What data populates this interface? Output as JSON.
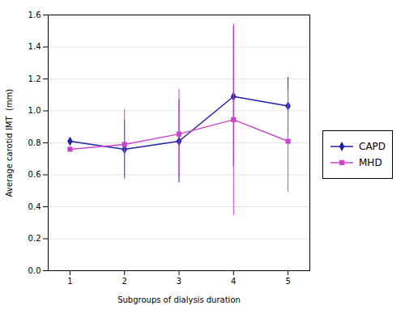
{
  "chart_data": {
    "type": "line",
    "x": [
      1,
      2,
      3,
      4,
      5
    ],
    "series": [
      {
        "name": "CAPD",
        "color": "#2222aa",
        "marker": "diamond",
        "values": [
          0.81,
          0.76,
          0.81,
          1.09,
          1.03
        ],
        "error_low": [
          0.0,
          0.18,
          0.26,
          0.44,
          0.18
        ],
        "error_high": [
          0.0,
          0.18,
          0.26,
          0.44,
          0.18
        ]
      },
      {
        "name": "MHD",
        "color": "#cc44cc",
        "marker": "square",
        "values": [
          0.76,
          0.79,
          0.855,
          0.945,
          0.81
        ],
        "error_low": [
          0.0,
          0.22,
          0.28,
          0.6,
          0.32
        ],
        "error_high": [
          0.0,
          0.22,
          0.28,
          0.6,
          0.32
        ]
      }
    ],
    "xlabel": "Subgroups of dialysis duration",
    "ylabel": "Average carotid IMT  (mm)",
    "xlim": [
      0.6,
      5.4
    ],
    "xticks": [
      1,
      2,
      3,
      4,
      5
    ],
    "ylim": [
      0.0,
      1.6
    ],
    "yticks": [
      {
        "value": 0,
        "label": "0.0"
      },
      0.2,
      0.4,
      0.6,
      0.8,
      {
        "value": 1.0,
        "label": "1.0"
      },
      1.2,
      1.4,
      1.6
    ],
    "grid": "y",
    "legend": "right"
  }
}
